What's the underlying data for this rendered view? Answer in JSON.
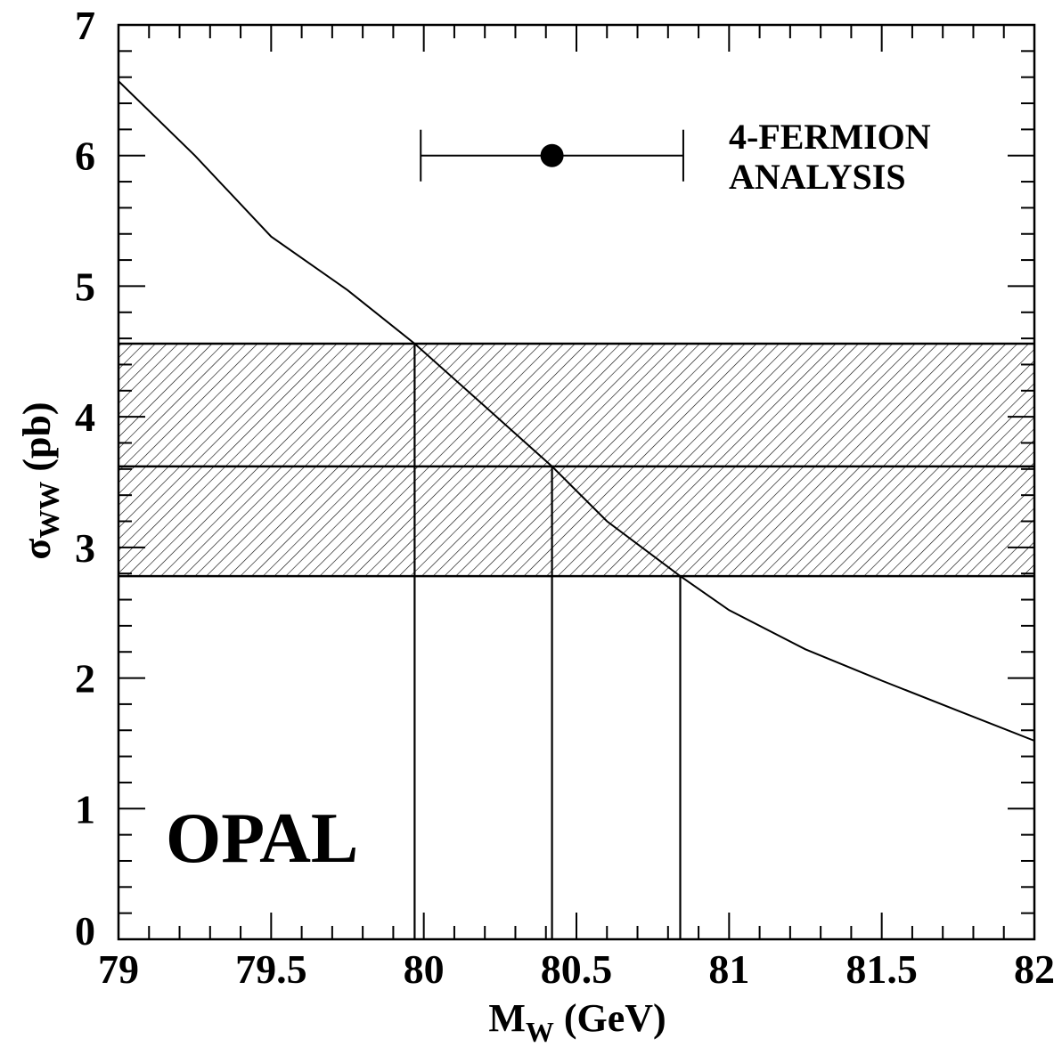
{
  "chart_data": {
    "type": "line",
    "title": "",
    "xlabel": "M",
    "xlabel_sub": "W",
    "xlabel_unit": " (GeV)",
    "ylabel": "σ",
    "ylabel_sub": "WW",
    "ylabel_unit": " (pb)",
    "xlim": [
      79,
      82
    ],
    "ylim": [
      0,
      7
    ],
    "x_ticks": [
      79,
      79.5,
      80,
      80.5,
      81,
      81.5,
      82
    ],
    "x_tick_labels": [
      "79",
      "79.5",
      "80",
      "80.5",
      "81",
      "81.5",
      "82"
    ],
    "y_ticks": [
      0,
      1,
      2,
      3,
      4,
      5,
      6,
      7
    ],
    "y_tick_labels": [
      "0",
      "1",
      "2",
      "3",
      "4",
      "5",
      "6",
      "7"
    ],
    "grid": false,
    "series": [
      {
        "type": "line",
        "x": [
          79.0,
          79.25,
          79.5,
          79.75,
          79.97,
          80.2,
          80.42,
          80.6,
          80.84,
          81.0,
          81.25,
          81.5,
          81.75,
          82.0
        ],
        "y": [
          6.57,
          6.0,
          5.38,
          4.97,
          4.56,
          4.08,
          3.62,
          3.2,
          2.78,
          2.52,
          2.22,
          1.98,
          1.75,
          1.52
        ]
      }
    ],
    "band": {
      "y_low": 2.78,
      "y_high": 4.56,
      "y_center": 3.62,
      "hatched": true
    },
    "vertical_lines": [
      79.97,
      80.42,
      80.84
    ],
    "measurement": {
      "x": 80.42,
      "x_low": 79.99,
      "x_high": 80.85,
      "y": 6.0
    },
    "annotations": [
      "4-FERMION",
      "ANALYSIS"
    ],
    "brand_label": "OPAL"
  }
}
